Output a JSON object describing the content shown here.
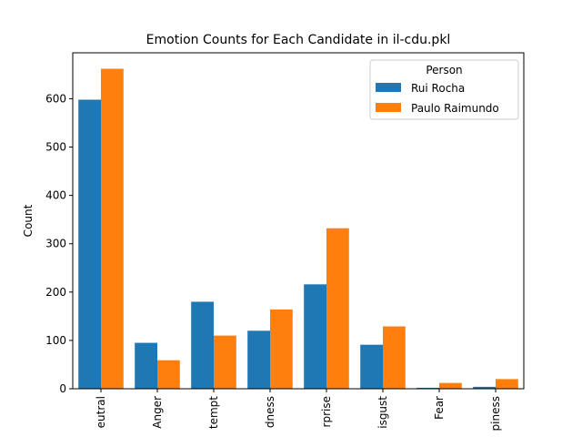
{
  "chart_data": {
    "type": "bar",
    "title": "Emotion Counts for Each Candidate in il-cdu.pkl",
    "xlabel": "",
    "ylabel": "Count",
    "categories": [
      "Neutral",
      "Anger",
      "Contempt",
      "Sadness",
      "Surprise",
      "Disgust",
      "Fear",
      "Happiness"
    ],
    "visible_tick_labels": [
      "eutral",
      "Anger",
      "tempt",
      "dness",
      "rprise",
      "isgust",
      "Fear",
      "piness"
    ],
    "series": [
      {
        "name": "Rui Rocha",
        "color": "#1f77b4",
        "values": [
          598,
          95,
          180,
          120,
          216,
          91,
          2,
          4
        ]
      },
      {
        "name": "Paulo Raimundo",
        "color": "#ff7f0e",
        "values": [
          662,
          59,
          110,
          164,
          332,
          129,
          12,
          20
        ]
      }
    ],
    "ylim": [
      0,
      695
    ],
    "yticks": [
      0,
      100,
      200,
      300,
      400,
      500,
      600
    ],
    "legend": {
      "title": "Person",
      "placement": "top-right"
    },
    "grid": false
  }
}
